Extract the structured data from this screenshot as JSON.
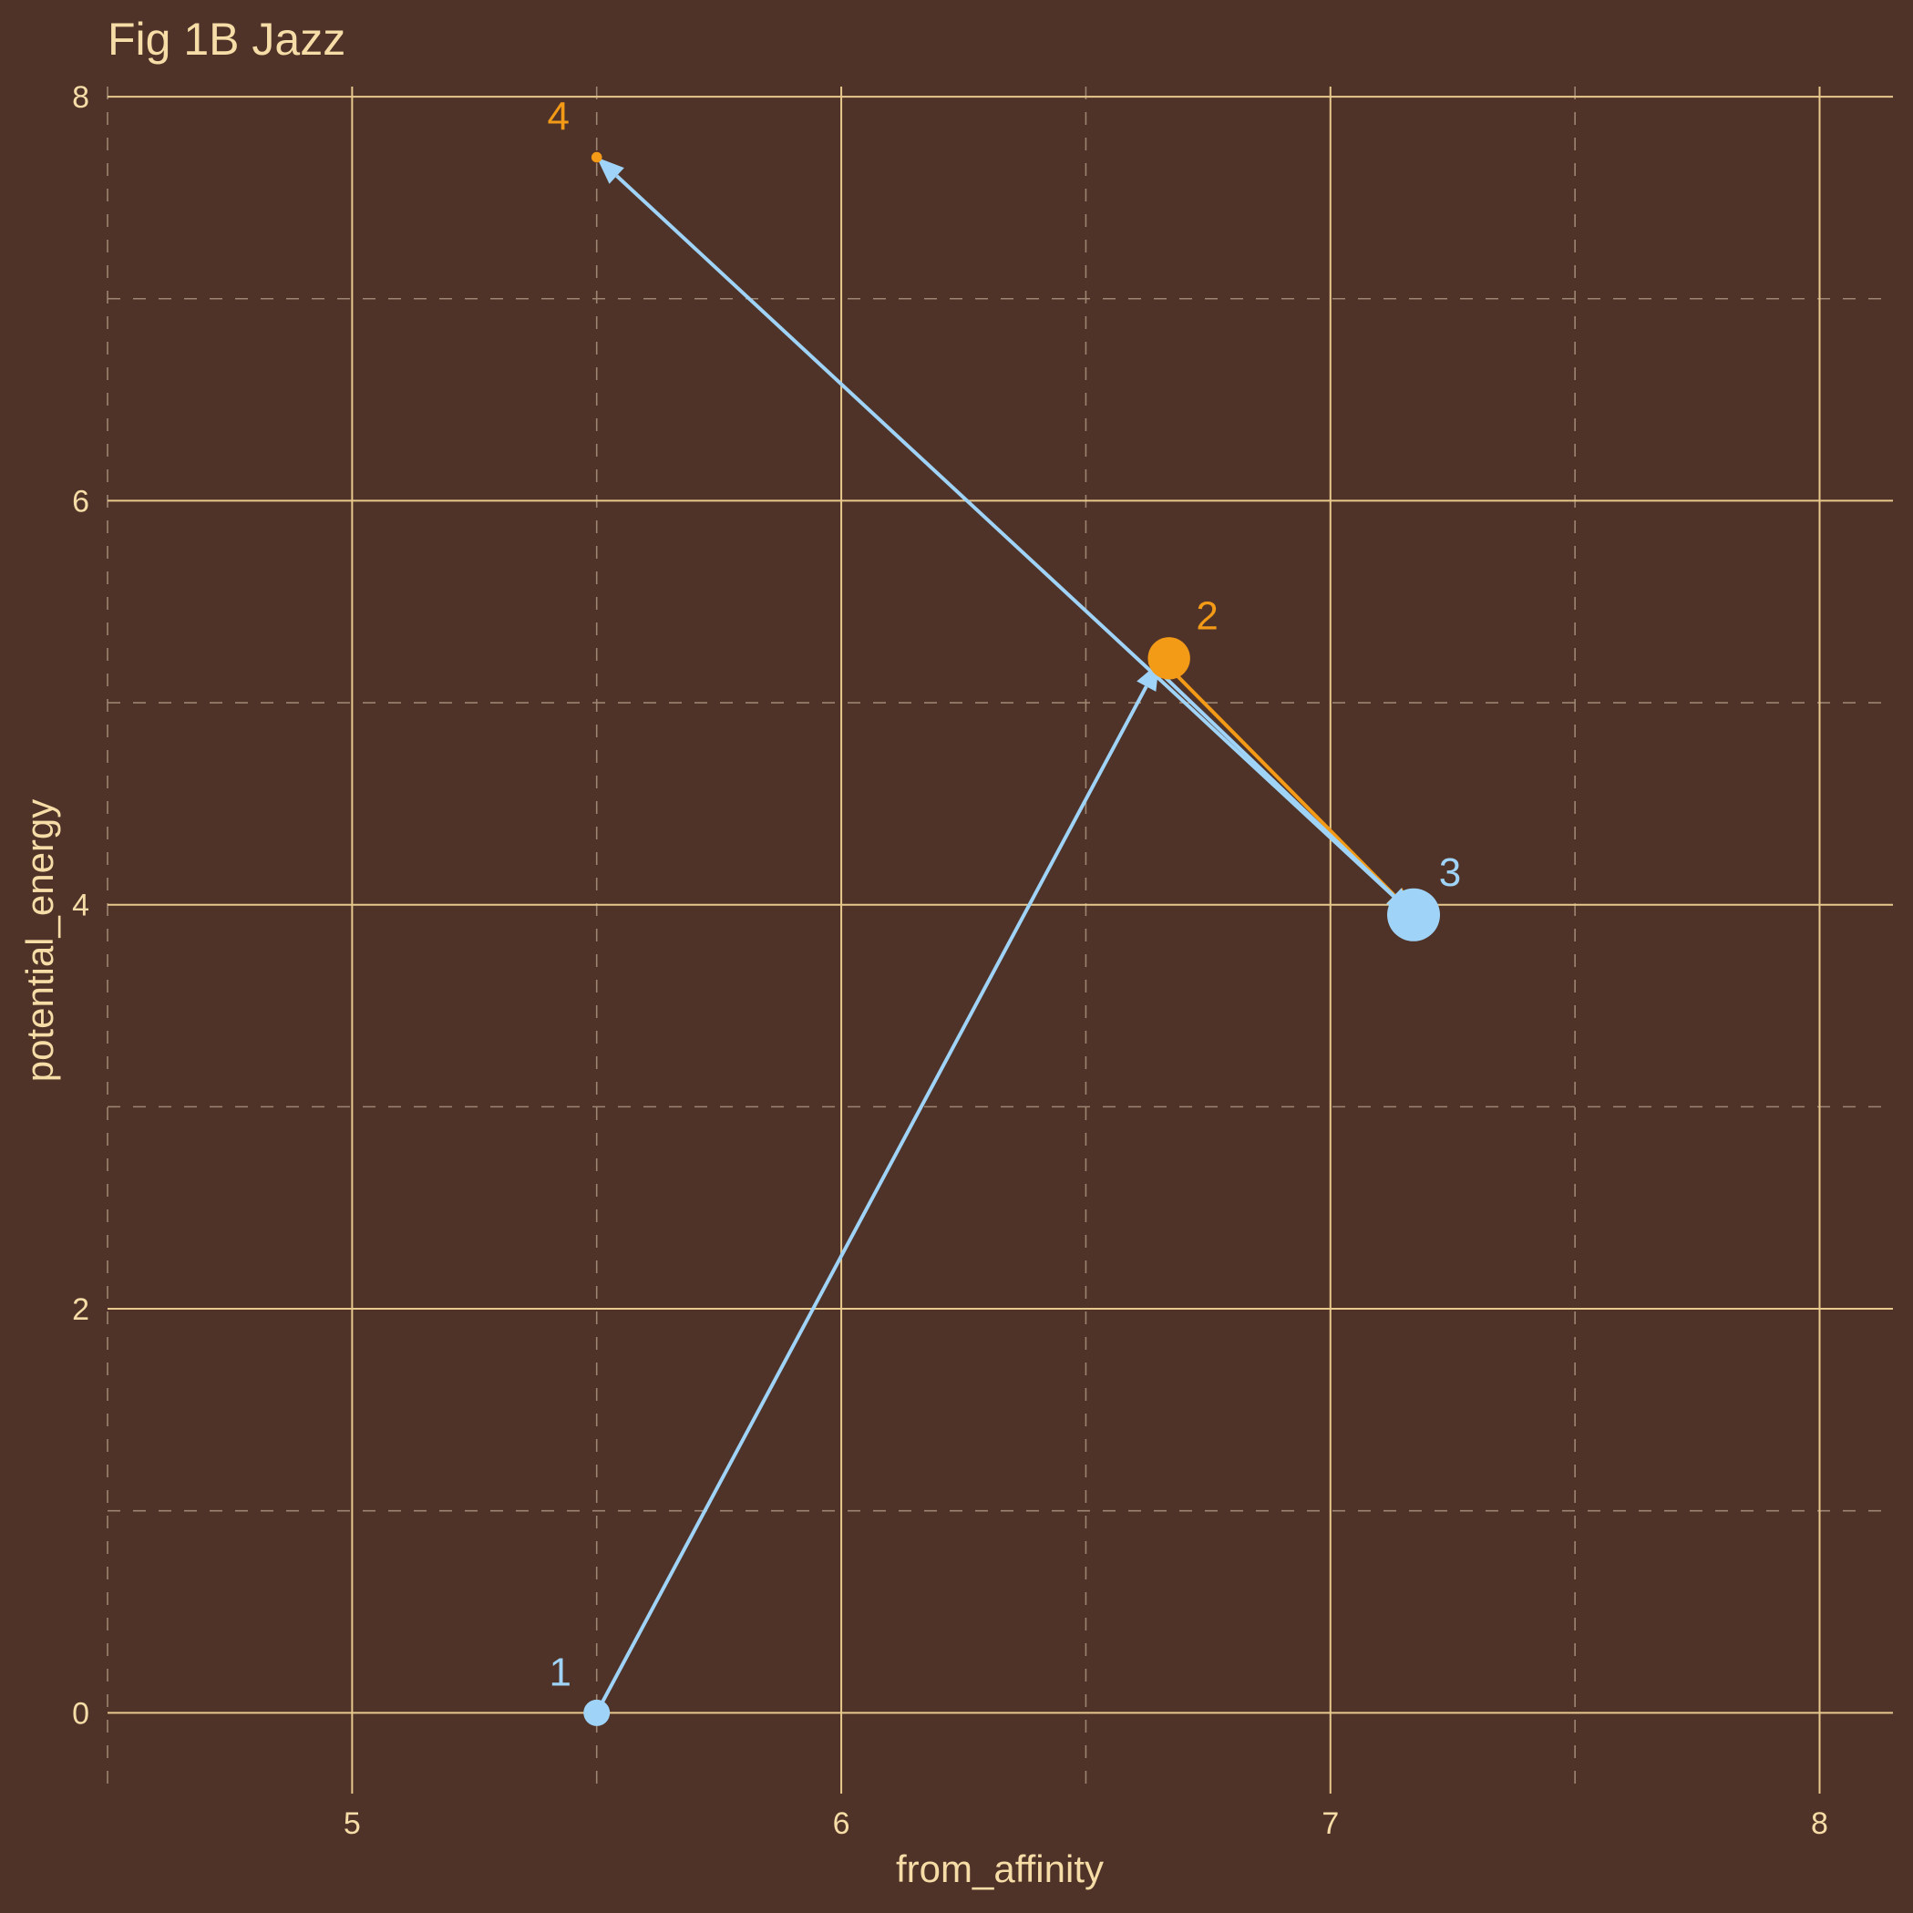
{
  "chart_data": {
    "type": "scatter",
    "title": "Fig 1B Jazz",
    "xlabel": "from_affinity",
    "ylabel": "potential_energy",
    "xlim": [
      4.5,
      8.15
    ],
    "ylim": [
      -0.4,
      8.05
    ],
    "x_ticks": [
      5,
      6,
      7,
      8
    ],
    "x_tick_labels": [
      "5",
      "6",
      "7",
      "8"
    ],
    "y_ticks": [
      0,
      2,
      4,
      6,
      8
    ],
    "y_tick_labels": [
      "0",
      "2",
      "4",
      "6",
      "8"
    ],
    "x_minor": [
      4.5,
      5.5,
      6.5,
      7.5
    ],
    "y_minor": [
      1,
      3,
      5,
      7
    ],
    "grid": true,
    "colors": {
      "background": "#4f3228",
      "major_grid": "#e8c98d",
      "minor_grid": "#9c8571",
      "blue": "#9fd3f7",
      "orange": "#f39a17"
    },
    "points": [
      {
        "label": "1",
        "x": 5.5,
        "y": 0.0,
        "size": 5,
        "color": "#9fd3f7"
      },
      {
        "label": "2",
        "x": 6.67,
        "y": 5.22,
        "size": 8,
        "color": "#f39a17"
      },
      {
        "label": "3",
        "x": 7.17,
        "y": 3.95,
        "size": 10,
        "color": "#9fd3f7"
      },
      {
        "label": "4",
        "x": 5.5,
        "y": 7.7,
        "size": 2,
        "color": "#f39a17"
      }
    ],
    "arrows": [
      {
        "from": [
          5.5,
          0.0
        ],
        "to": [
          6.65,
          5.2
        ],
        "color": "#9fd3f7"
      },
      {
        "from": [
          6.68,
          5.15
        ],
        "to": [
          7.17,
          3.95
        ],
        "color": "#f39a17"
      },
      {
        "from": [
          6.63,
          5.2
        ],
        "to": [
          7.17,
          3.95
        ],
        "color": "#9fd3f7"
      },
      {
        "from": [
          7.17,
          3.95
        ],
        "to": [
          5.5,
          7.7
        ],
        "color": "#9fd3f7"
      }
    ]
  }
}
